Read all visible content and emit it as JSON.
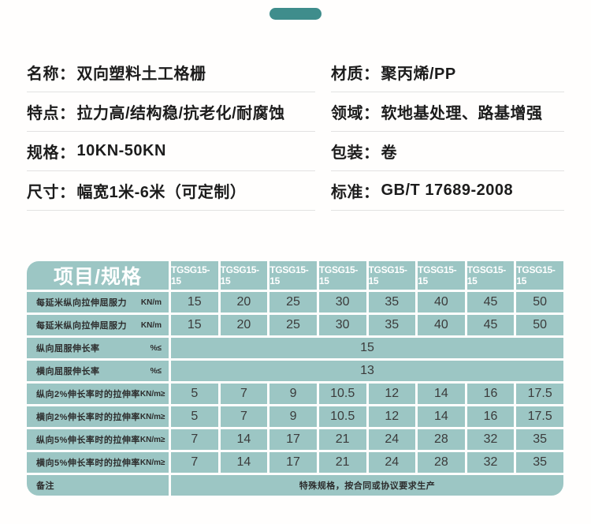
{
  "colors": {
    "accent_teal": "#3f8d8c",
    "table_cell_teal": "#9cc6c4",
    "divider_gray": "#e2e2e2",
    "text_dark": "#1c1c1c"
  },
  "info": {
    "rows": [
      {
        "left_label": "名称：",
        "left_value": "双向塑料土工格栅",
        "right_label": "材质：",
        "right_value": "聚丙烯/PP"
      },
      {
        "left_label": "特点：",
        "left_value": "拉力高/结构稳/抗老化/耐腐蚀",
        "right_label": "领域：",
        "right_value": "软地基处理、路基增强"
      },
      {
        "left_label": "规格：",
        "left_value": "10KN-50KN",
        "right_label": "包装：",
        "right_value": "卷"
      },
      {
        "left_label": "尺寸：",
        "left_value": "幅宽1米-6米（可定制）",
        "right_label": "标准：",
        "right_value": "GB/T 17689-2008"
      }
    ]
  },
  "table": {
    "corner_header": "项目/规格",
    "column_headers": [
      "TGSG15-15",
      "TGSG15-15",
      "TGSG15-15",
      "TGSG15-15",
      "TGSG15-15",
      "TGSG15-15",
      "TGSG15-15",
      "TGSG15-15"
    ],
    "rows": [
      {
        "label": "每延米纵向拉伸屈服力",
        "unit": "KN/m",
        "values": [
          "15",
          "20",
          "25",
          "30",
          "35",
          "40",
          "45",
          "50"
        ]
      },
      {
        "label": "每延米纵向拉伸屈服力",
        "unit": "KN/m",
        "values": [
          "15",
          "20",
          "25",
          "30",
          "35",
          "40",
          "45",
          "50"
        ]
      },
      {
        "label": "纵向屈服伸长率",
        "unit": "%≤",
        "merged": "15"
      },
      {
        "label": "横向屈服伸长率",
        "unit": "%≤",
        "merged": "13"
      },
      {
        "label": "纵向2%伸长率时的拉伸率",
        "unit": "KN/m≥",
        "values": [
          "5",
          "7",
          "9",
          "10.5",
          "12",
          "14",
          "16",
          "17.5"
        ]
      },
      {
        "label": "横向2%伸长率时的拉伸率",
        "unit": "KN/m≥",
        "values": [
          "5",
          "7",
          "9",
          "10.5",
          "12",
          "14",
          "16",
          "17.5"
        ]
      },
      {
        "label": "纵向5%伸长率时的拉伸率",
        "unit": "KN/m≥",
        "values": [
          "7",
          "14",
          "17",
          "21",
          "24",
          "28",
          "32",
          "35"
        ]
      },
      {
        "label": "横向5%伸长率时的拉伸率",
        "unit": "KN/m≥",
        "values": [
          "7",
          "14",
          "17",
          "21",
          "24",
          "28",
          "32",
          "35"
        ]
      },
      {
        "label": "备注",
        "unit": "",
        "merged": "特殊规格，按合同或协议要求生产"
      }
    ]
  }
}
